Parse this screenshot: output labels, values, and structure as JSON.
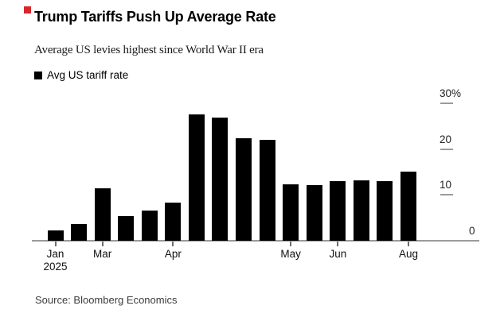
{
  "header": {
    "title": "Trump Tariffs Push Up Average Rate",
    "subtitle": "Average US levies highest since World War II era"
  },
  "legend": {
    "label": "Avg US tariff rate",
    "swatch_color": "#000000"
  },
  "source": "Source: Bloomberg Economics",
  "accent_color": "#d8262c",
  "chart_data": {
    "type": "bar",
    "title": "Trump Tariffs Push Up Average Rate",
    "subtitle": "Average US levies highest since World War II era",
    "series_name": "Avg US tariff rate",
    "unit": "%",
    "values": [
      2.2,
      3.6,
      11.4,
      5.4,
      6.6,
      8.4,
      27.5,
      26.8,
      22.3,
      22.1,
      12.3,
      12.2,
      13.0,
      13.1,
      13.0,
      15.1
    ],
    "bar_color": "#000000",
    "ylim": [
      0,
      30
    ],
    "grid": false,
    "axis_side": "right",
    "y_ticks": [
      {
        "label": "0",
        "value": 0
      },
      {
        "label": "10",
        "value": 10
      },
      {
        "label": "20",
        "value": 20
      },
      {
        "label": "30%",
        "value": 30
      }
    ],
    "x_ticks": [
      {
        "label": "Jan",
        "sublabel": "2025",
        "bar_index": 0
      },
      {
        "label": "Mar",
        "sublabel": "",
        "bar_index": 2
      },
      {
        "label": "Apr",
        "sublabel": "",
        "bar_index": 5
      },
      {
        "label": "May",
        "sublabel": "",
        "bar_index": 10
      },
      {
        "label": "Jun",
        "sublabel": "",
        "bar_index": 12
      },
      {
        "label": "Aug",
        "sublabel": "",
        "bar_index": 15
      }
    ]
  }
}
